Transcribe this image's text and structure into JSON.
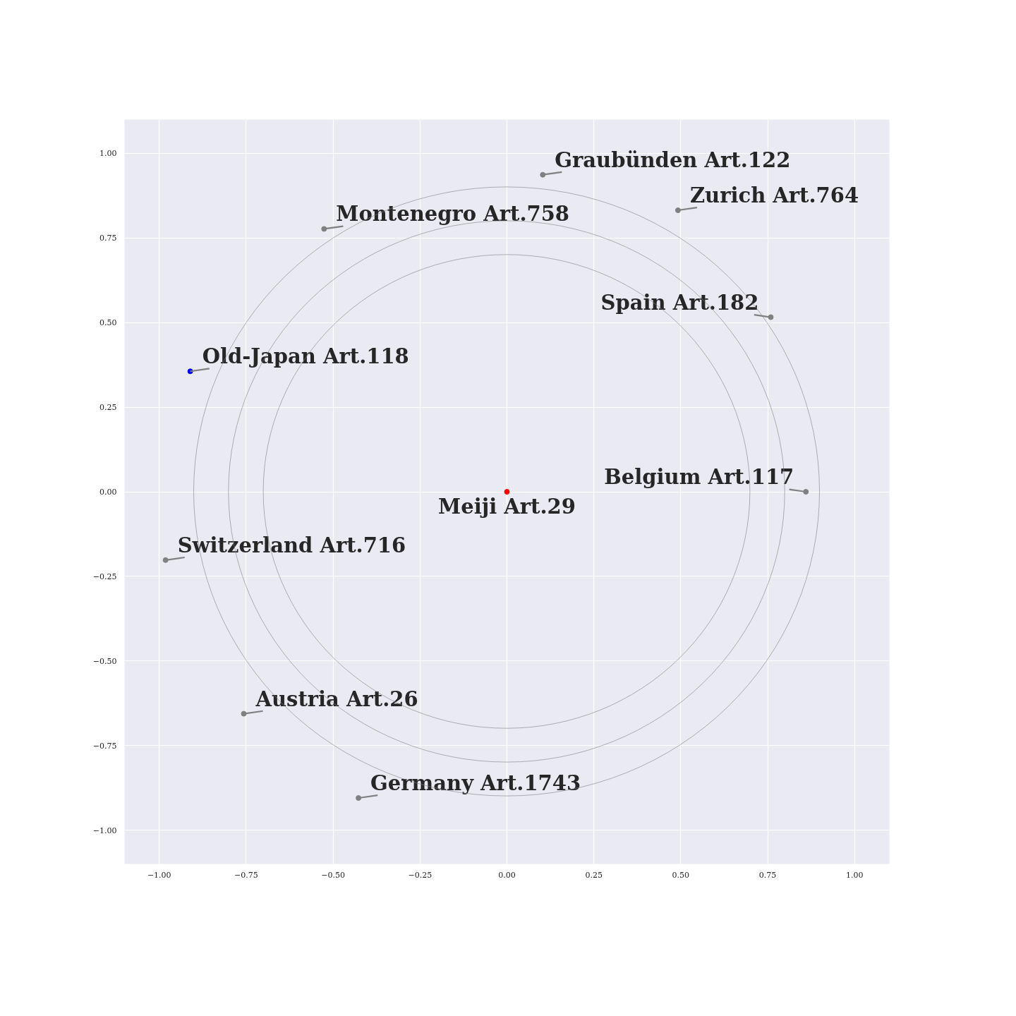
{
  "chart_data": {
    "type": "scatter",
    "xlim": [
      -1.1,
      1.1
    ],
    "ylim": [
      -1.1,
      1.1
    ],
    "xticks": [
      {
        "value": -1,
        "label": "−1.00"
      },
      {
        "value": -0.75,
        "label": "−0.75"
      },
      {
        "value": -0.5,
        "label": "−0.50"
      },
      {
        "value": -0.25,
        "label": "−0.25"
      },
      {
        "value": 0,
        "label": "0.00"
      },
      {
        "value": 0.25,
        "label": "0.25"
      },
      {
        "value": 0.5,
        "label": "0.50"
      },
      {
        "value": 0.75,
        "label": "0.75"
      },
      {
        "value": 1,
        "label": "1.00"
      }
    ],
    "yticks": [
      {
        "value": -1,
        "label": "−1.00"
      },
      {
        "value": -0.75,
        "label": "−0.75"
      },
      {
        "value": -0.5,
        "label": "−0.50"
      },
      {
        "value": -0.25,
        "label": "−0.25"
      },
      {
        "value": 0,
        "label": "0.00"
      },
      {
        "value": 0.25,
        "label": "0.25"
      },
      {
        "value": 0.5,
        "label": "0.50"
      },
      {
        "value": 0.75,
        "label": "0.75"
      },
      {
        "value": 1,
        "label": "1.00"
      }
    ],
    "grid": true,
    "series": [
      {
        "marker": "circle",
        "x": [
          0,
          -0.911,
          0.103,
          0.492,
          -0.526,
          0.759,
          0.86,
          -0.982,
          -0.757,
          -0.427
        ],
        "values": [
          0,
          0.356,
          0.937,
          0.832,
          0.777,
          0.516,
          0,
          -0.202,
          -0.656,
          -0.905
        ],
        "colors": [
          "#ff0000",
          "#0000ff",
          "#808080",
          "#808080",
          "#808080",
          "#808080",
          "#808080",
          "#808080",
          "#808080",
          "#808080"
        ]
      }
    ],
    "annotations": [
      {
        "text": "Meiji Art.29",
        "x": 0,
        "y": 0
      },
      {
        "text": "Old-Japan Art.118",
        "x": -0.911,
        "y": 0.356
      },
      {
        "text": "Graubünden Art.122",
        "x": 0.103,
        "y": 0.937
      },
      {
        "text": "Zurich Art.764",
        "x": 0.492,
        "y": 0.832
      },
      {
        "text": "Montenegro Art.758",
        "x": -0.526,
        "y": 0.777
      },
      {
        "text": "Spain Art.182",
        "x": 0.759,
        "y": 0.516
      },
      {
        "text": "Belgium Art.117",
        "x": 0.86,
        "y": 0
      },
      {
        "text": "Switzerland Art.716",
        "x": -0.982,
        "y": -0.202
      },
      {
        "text": "Austria Art.26",
        "x": -0.757,
        "y": -0.656
      },
      {
        "text": "Germany Art.1743",
        "x": -0.427,
        "y": -0.905
      }
    ]
  }
}
